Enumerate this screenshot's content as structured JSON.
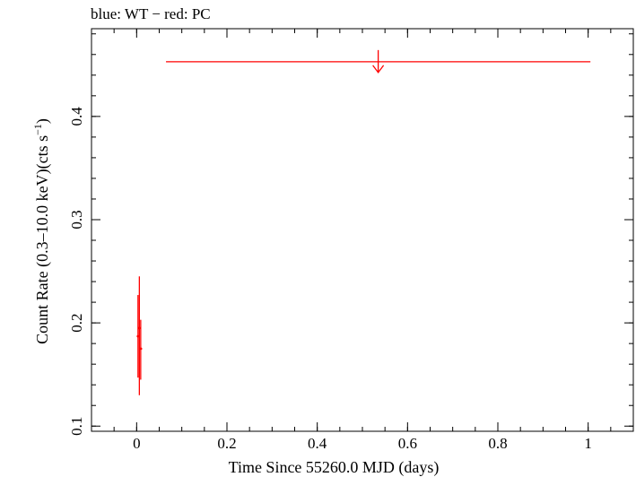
{
  "chart_data": {
    "type": "scatter",
    "title": "blue: WT − red: PC",
    "xlabel": "Time Since 55260.0 MJD (days)",
    "ylabel_main": "Count Rate (0.3–10.0 keV)(cts s",
    "ylabel_sup": "−1",
    "ylabel_tail": ")",
    "xlim": [
      -0.1,
      1.1
    ],
    "ylim": [
      0.095,
      0.485
    ],
    "x_ticks": [
      {
        "value": 0,
        "label": "0"
      },
      {
        "value": 0.2,
        "label": "0.2"
      },
      {
        "value": 0.4,
        "label": "0.4"
      },
      {
        "value": 0.6,
        "label": "0.6"
      },
      {
        "value": 0.8,
        "label": "0.8"
      },
      {
        "value": 1.0,
        "label": "1"
      }
    ],
    "y_ticks": [
      {
        "value": 0.1,
        "label": "0.1"
      },
      {
        "value": 0.2,
        "label": "0.2"
      },
      {
        "value": 0.3,
        "label": "0.3"
      },
      {
        "value": 0.4,
        "label": "0.4"
      }
    ],
    "x_minor_step": 0.05,
    "y_minor_step": 0.02,
    "colors": {
      "red": "#ff0000",
      "blue": "#0000ff"
    },
    "series": [
      {
        "name": "PC",
        "color": "#ff0000",
        "points": [
          {
            "x": 0.003,
            "y": 0.187,
            "yerr_lo": 0.04,
            "yerr_hi": 0.04,
            "xerr": 0.001
          },
          {
            "x": 0.006,
            "y": 0.195,
            "yerr_lo": 0.065,
            "yerr_hi": 0.05,
            "xerr": 0.001
          },
          {
            "x": 0.009,
            "y": 0.175,
            "yerr_lo": 0.03,
            "yerr_hi": 0.028,
            "xerr": 0.003
          }
        ],
        "upper_limits": [
          {
            "x_from": 0.065,
            "x_to": 1.005,
            "x_center": 0.535,
            "y": 0.453
          }
        ]
      }
    ]
  }
}
